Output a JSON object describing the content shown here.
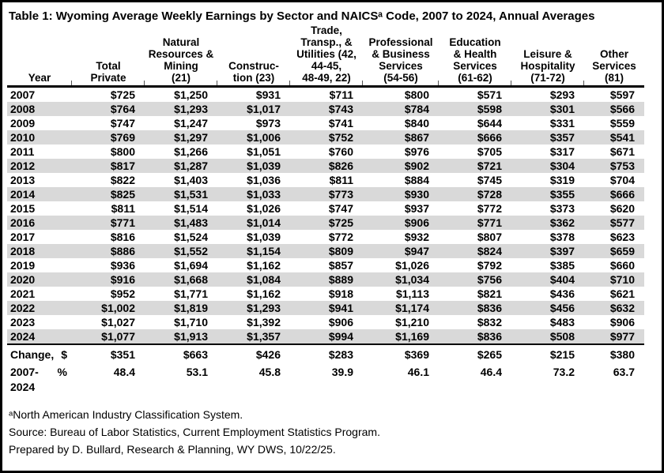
{
  "table": {
    "title": "Table 1: Wyoming Average Weekly Earnings by Sector and NAICSᵃ Code, 2007 to 2024, Annual Averages",
    "columns": [
      "Year",
      "Total\nPrivate",
      "Natural\nResources &\nMining\n(21)",
      "Construc-\ntion (23)",
      "Trade,\nTransp., &\nUtilities (42,\n44-45,\n48-49, 22)",
      "Professional\n& Business\nServices\n(54-56)",
      "Education\n& Health\nServices\n(61-62)",
      "Leisure &\nHospitality\n(71-72)",
      "Other\nServices\n(81)"
    ],
    "rows": [
      {
        "year": "2007",
        "values": [
          "$725",
          "$1,250",
          "$931",
          "$711",
          "$800",
          "$571",
          "$293",
          "$597"
        ]
      },
      {
        "year": "2008",
        "values": [
          "$764",
          "$1,293",
          "$1,017",
          "$743",
          "$784",
          "$598",
          "$301",
          "$566"
        ]
      },
      {
        "year": "2009",
        "values": [
          "$747",
          "$1,247",
          "$973",
          "$741",
          "$840",
          "$644",
          "$331",
          "$559"
        ]
      },
      {
        "year": "2010",
        "values": [
          "$769",
          "$1,297",
          "$1,006",
          "$752",
          "$867",
          "$666",
          "$357",
          "$541"
        ]
      },
      {
        "year": "2011",
        "values": [
          "$800",
          "$1,266",
          "$1,051",
          "$760",
          "$976",
          "$705",
          "$317",
          "$671"
        ]
      },
      {
        "year": "2012",
        "values": [
          "$817",
          "$1,287",
          "$1,039",
          "$826",
          "$902",
          "$721",
          "$304",
          "$753"
        ]
      },
      {
        "year": "2013",
        "values": [
          "$822",
          "$1,403",
          "$1,036",
          "$811",
          "$884",
          "$745",
          "$319",
          "$704"
        ]
      },
      {
        "year": "2014",
        "values": [
          "$825",
          "$1,531",
          "$1,033",
          "$773",
          "$930",
          "$728",
          "$355",
          "$666"
        ]
      },
      {
        "year": "2015",
        "values": [
          "$811",
          "$1,514",
          "$1,026",
          "$747",
          "$937",
          "$772",
          "$373",
          "$620"
        ]
      },
      {
        "year": "2016",
        "values": [
          "$771",
          "$1,483",
          "$1,014",
          "$725",
          "$906",
          "$771",
          "$362",
          "$577"
        ]
      },
      {
        "year": "2017",
        "values": [
          "$816",
          "$1,524",
          "$1,039",
          "$772",
          "$932",
          "$807",
          "$378",
          "$623"
        ]
      },
      {
        "year": "2018",
        "values": [
          "$886",
          "$1,552",
          "$1,154",
          "$809",
          "$947",
          "$824",
          "$397",
          "$659"
        ]
      },
      {
        "year": "2019",
        "values": [
          "$936",
          "$1,694",
          "$1,162",
          "$857",
          "$1,026",
          "$792",
          "$385",
          "$660"
        ]
      },
      {
        "year": "2020",
        "values": [
          "$916",
          "$1,668",
          "$1,084",
          "$889",
          "$1,034",
          "$756",
          "$404",
          "$710"
        ]
      },
      {
        "year": "2021",
        "values": [
          "$952",
          "$1,771",
          "$1,162",
          "$918",
          "$1,113",
          "$821",
          "$436",
          "$621"
        ]
      },
      {
        "year": "2022",
        "values": [
          "$1,002",
          "$1,819",
          "$1,293",
          "$941",
          "$1,174",
          "$836",
          "$456",
          "$632"
        ]
      },
      {
        "year": "2023",
        "values": [
          "$1,027",
          "$1,710",
          "$1,392",
          "$906",
          "$1,210",
          "$832",
          "$483",
          "$906"
        ]
      },
      {
        "year": "2024",
        "values": [
          "$1,077",
          "$1,913",
          "$1,357",
          "$994",
          "$1,169",
          "$836",
          "$508",
          "$977"
        ]
      }
    ],
    "change": {
      "label_line1": "Change,",
      "label_line2": "2007-",
      "label_line3": "2024",
      "dollar_symbol": "$",
      "percent_symbol": "%",
      "dollar_values": [
        "$351",
        "$663",
        "$426",
        "$283",
        "$369",
        "$265",
        "$215",
        "$380"
      ],
      "percent_values": [
        "48.4",
        "53.1",
        "45.8",
        "39.9",
        "46.1",
        "46.4",
        "73.2",
        "63.7"
      ]
    },
    "footnotes": {
      "naics": "ᵃNorth American Industry Classification System.",
      "source": "Source: Bureau of Labor Statistics, Current Employment Statistics Program.",
      "prepared": "Prepared by D. Bullard, Research & Planning, WY DWS, 10/22/25."
    },
    "colors": {
      "stripe": "#d9d9d9",
      "border": "#000000",
      "text": "#000000",
      "background": "#ffffff"
    }
  }
}
